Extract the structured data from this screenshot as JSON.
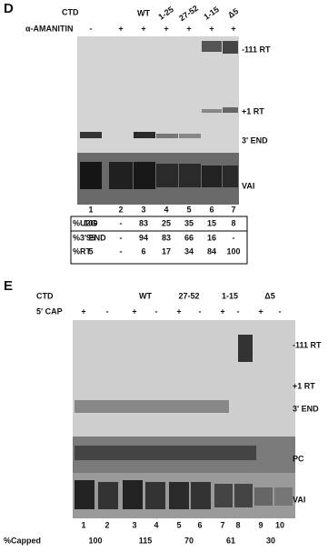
{
  "panel_d": {
    "label": "D",
    "ctd_label": "CTD",
    "amanitin_label": "α-AMANITIN",
    "ctd": [
      "WT",
      "1-25",
      "27-52",
      "1-15",
      "Δ5"
    ],
    "amanitin": [
      "-",
      "+",
      "+",
      "+",
      "+",
      "+",
      "+"
    ],
    "bands": [
      "-111 RT",
      "+1 RT",
      "3' END",
      "VAI"
    ],
    "lanes": [
      "1",
      "2",
      "3",
      "4",
      "5",
      "6",
      "7"
    ],
    "table": {
      "rows": [
        [
          "%U2G",
          "100",
          "-",
          "83",
          "25",
          "35",
          "15",
          "8"
        ],
        [
          "%3' END",
          "95",
          "-",
          "94",
          "83",
          "66",
          "16",
          "-"
        ],
        [
          "%RT",
          "5",
          "-",
          "6",
          "17",
          "34",
          "84",
          "100"
        ]
      ]
    }
  },
  "panel_e": {
    "label": "E",
    "ctd_label": "CTD",
    "cap_label": "5' CAP",
    "ctd": [
      "WT",
      "27-52",
      "1-15",
      "Δ5"
    ],
    "cap": [
      "+",
      "-",
      "+",
      "-",
      "+",
      "-",
      "+",
      "-",
      "+",
      "-"
    ],
    "bands": [
      "-111 RT",
      "+1 RT",
      "3' END",
      "PC",
      "VAI"
    ],
    "lanes": [
      "1",
      "2",
      "3",
      "4",
      "5",
      "6",
      "7",
      "8",
      "9",
      "10"
    ],
    "capped_label": "%Capped",
    "capped": [
      "100",
      "115",
      "70",
      "61",
      "30"
    ]
  }
}
